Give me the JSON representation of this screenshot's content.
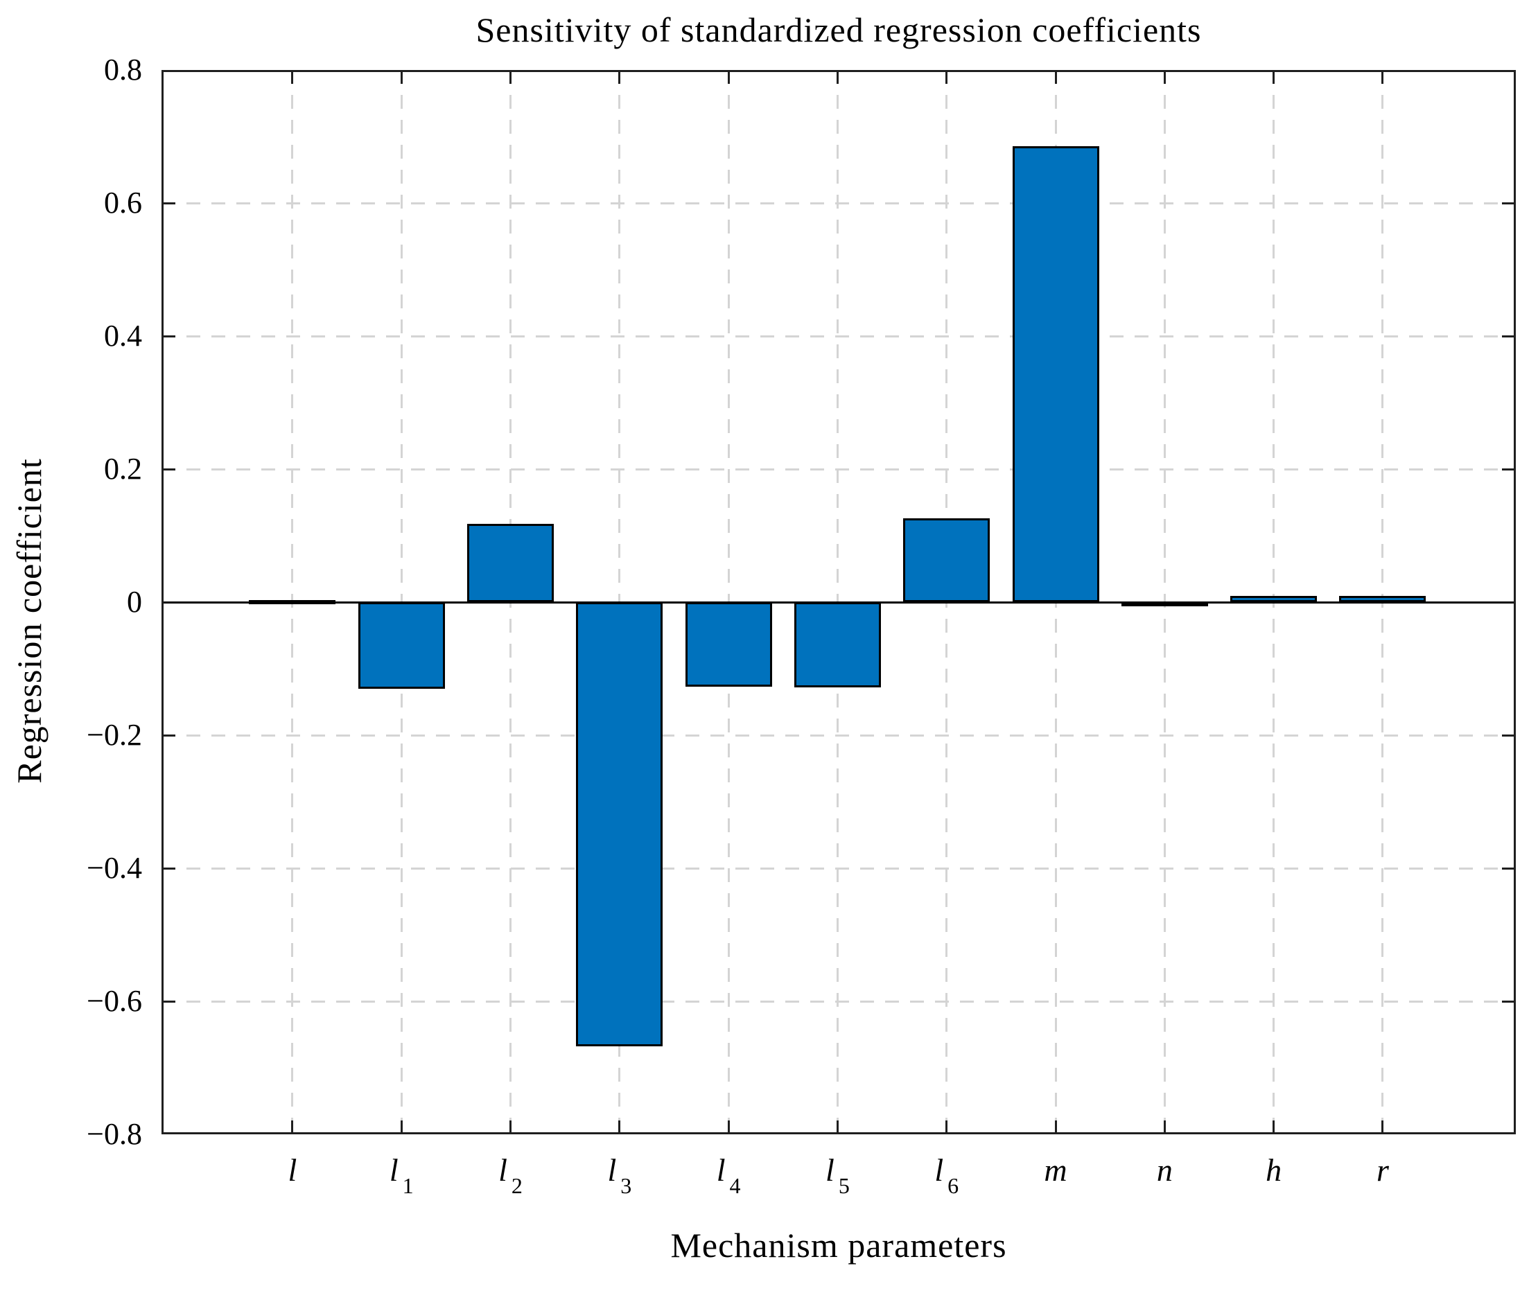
{
  "chart_data": {
    "type": "bar",
    "title": "Sensitivity of standardized regression coefficients",
    "xlabel": "Mechanism parameters",
    "ylabel": "Regression coefficient",
    "categories": [
      "l",
      "l_1",
      "l_2",
      "l_3",
      "l_4",
      "l_5",
      "l_6",
      "m",
      "n",
      "h",
      "r"
    ],
    "values": [
      0.0,
      -0.13,
      0.118,
      -0.668,
      -0.127,
      -0.128,
      0.126,
      0.685,
      -0.005,
      0.009,
      0.009
    ],
    "ylim": [
      -0.8,
      0.8
    ],
    "ytick_step": 0.2,
    "ytick_labels": [
      "0.8",
      "0.6",
      "0.4",
      "0.2",
      "0",
      "−0.2",
      "−0.4",
      "−0.6",
      "−0.8"
    ],
    "grid": "dashed",
    "legend": "none",
    "bar_color": "#0072BD",
    "bar_edge_color": "#000000",
    "axis_color": "#1f1f1f",
    "grid_color": "#d4d4d4",
    "baseline_color": "#000000",
    "background_color": "#ffffff"
  }
}
